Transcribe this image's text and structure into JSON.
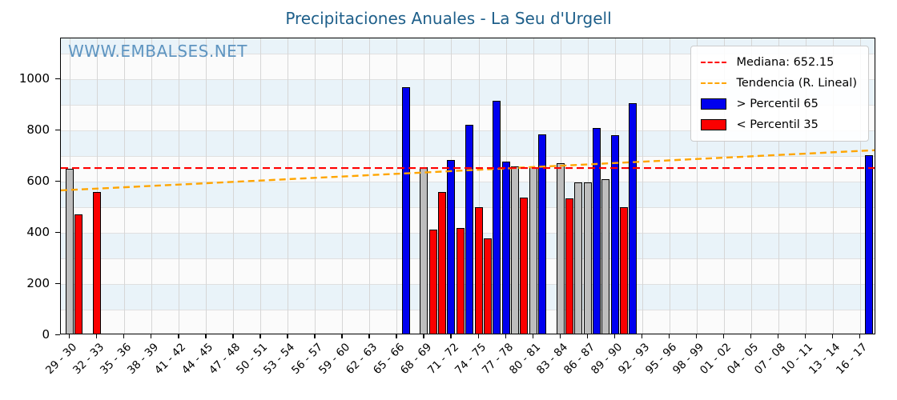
{
  "title": "Precipitaciones Anuales - La Seu d'Urgell",
  "watermark": "WWW.EMBALSES.NET",
  "legend": {
    "median_label": "Mediana: 652.15",
    "trend_label": "Tendencia (R. Lineal)",
    "high_label": "> Percentil 65",
    "low_label": "< Percentil 35"
  },
  "colors": {
    "title": "#1e5f8a",
    "watermark": "#5e94c0",
    "above_p65": "#0000ef",
    "below_p35": "#fb0000",
    "normal": "#bdbdbd",
    "median_line": "#ff0000",
    "trend_line": "#ffa500",
    "stripe": "#e9f3f9"
  },
  "chart_data": {
    "type": "bar",
    "title": "Precipitaciones Anuales - La Seu d'Urgell",
    "xlabel": "",
    "ylabel": "",
    "ylim": [
      0,
      1158
    ],
    "yticks": [
      0,
      200,
      400,
      600,
      800,
      1000
    ],
    "xticklabels": [
      "29 - 30",
      "32 - 33",
      "35 - 36",
      "38 - 39",
      "41 - 42",
      "44 - 45",
      "47 - 48",
      "50 - 51",
      "53 - 54",
      "56 - 57",
      "59 - 60",
      "62 - 63",
      "65 - 66",
      "68 - 69",
      "71 - 72",
      "74 - 75",
      "77 - 78",
      "80 - 81",
      "83 - 84",
      "86 - 87",
      "89 - 90",
      "92 - 93",
      "95 - 96",
      "98 - 99",
      "01 - 02",
      "04 - 05",
      "07 - 08",
      "10 - 11",
      "13 - 14",
      "16 - 17"
    ],
    "median": 652.15,
    "trend": {
      "start_value": 565,
      "end_value": 722
    },
    "legend_position": "top-right",
    "grid": true,
    "bars": [
      {
        "year": "29 - 30",
        "value": 650,
        "category": "normal"
      },
      {
        "year": "30 - 31",
        "value": 470,
        "category": "below_p35"
      },
      {
        "year": "32 - 33",
        "value": 558,
        "category": "below_p35"
      },
      {
        "year": "66 - 67",
        "value": 967,
        "category": "above_p65"
      },
      {
        "year": "68 - 69",
        "value": 655,
        "category": "normal"
      },
      {
        "year": "69 - 70",
        "value": 413,
        "category": "below_p35"
      },
      {
        "year": "70 - 71",
        "value": 560,
        "category": "below_p35"
      },
      {
        "year": "71 - 72",
        "value": 685,
        "category": "above_p65"
      },
      {
        "year": "72 - 73",
        "value": 417,
        "category": "below_p35"
      },
      {
        "year": "73 - 74",
        "value": 820,
        "category": "above_p65"
      },
      {
        "year": "74 - 75",
        "value": 500,
        "category": "below_p35"
      },
      {
        "year": "75 - 76",
        "value": 378,
        "category": "below_p35"
      },
      {
        "year": "76 - 77",
        "value": 913,
        "category": "above_p65"
      },
      {
        "year": "77 - 78",
        "value": 676,
        "category": "above_p65"
      },
      {
        "year": "78 - 79",
        "value": 658,
        "category": "normal"
      },
      {
        "year": "79 - 80",
        "value": 537,
        "category": "below_p35"
      },
      {
        "year": "80 - 81",
        "value": 655,
        "category": "normal"
      },
      {
        "year": "81 - 82",
        "value": 785,
        "category": "above_p65"
      },
      {
        "year": "83 - 84",
        "value": 670,
        "category": "normal"
      },
      {
        "year": "84 - 85",
        "value": 534,
        "category": "below_p35"
      },
      {
        "year": "85 - 86",
        "value": 596,
        "category": "normal"
      },
      {
        "year": "86 - 87",
        "value": 596,
        "category": "normal"
      },
      {
        "year": "87 - 88",
        "value": 809,
        "category": "above_p65"
      },
      {
        "year": "88 - 89",
        "value": 608,
        "category": "normal"
      },
      {
        "year": "89 - 90",
        "value": 780,
        "category": "above_p65"
      },
      {
        "year": "90 - 91",
        "value": 500,
        "category": "below_p35"
      },
      {
        "year": "91 - 92",
        "value": 904,
        "category": "above_p65"
      },
      {
        "year": "17 - 18",
        "value": 701,
        "category": "above_p65"
      }
    ]
  }
}
